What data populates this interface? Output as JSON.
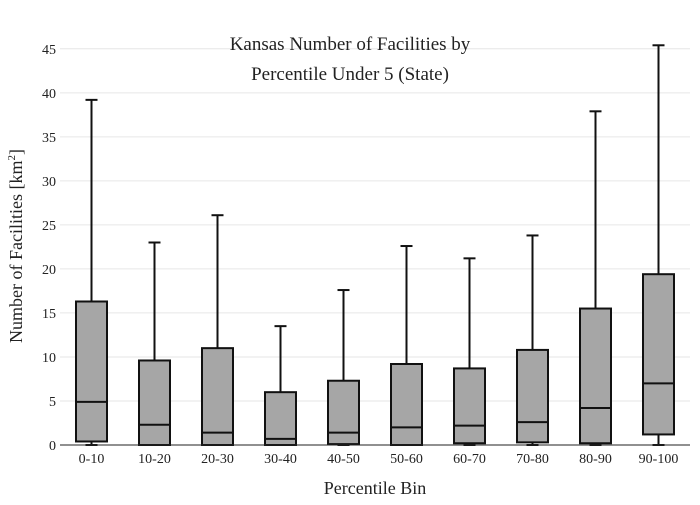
{
  "chart_data": {
    "type": "box",
    "title_lines": [
      "Kansas Number of Facilities by",
      "Percentile Under 5 (State)"
    ],
    "xlabel": "Percentile Bin",
    "ylabel_main": "Number of Facilities  [km",
    "ylabel_sup": "2",
    "ylabel_close": "]",
    "ylim": [
      0,
      46
    ],
    "yticks": [
      0,
      5,
      10,
      15,
      20,
      25,
      30,
      35,
      40,
      45
    ],
    "grid": true,
    "box_color": "#a6a6a6",
    "categories": [
      "0-10",
      "10-20",
      "20-30",
      "30-40",
      "40-50",
      "50-60",
      "60-70",
      "70-80",
      "80-90",
      "90-100"
    ],
    "boxes": [
      {
        "min": 0.0,
        "q1": 0.4,
        "median": 4.9,
        "q3": 16.3,
        "max": 39.2
      },
      {
        "min": 0.0,
        "q1": 0.0,
        "median": 2.3,
        "q3": 9.6,
        "max": 23.0
      },
      {
        "min": 0.0,
        "q1": 0.0,
        "median": 1.4,
        "q3": 11.0,
        "max": 26.1
      },
      {
        "min": 0.0,
        "q1": 0.0,
        "median": 0.7,
        "q3": 6.0,
        "max": 13.5
      },
      {
        "min": 0.0,
        "q1": 0.1,
        "median": 1.4,
        "q3": 7.3,
        "max": 17.6
      },
      {
        "min": 0.0,
        "q1": 0.0,
        "median": 2.0,
        "q3": 9.2,
        "max": 22.6
      },
      {
        "min": 0.0,
        "q1": 0.2,
        "median": 2.2,
        "q3": 8.7,
        "max": 21.2
      },
      {
        "min": 0.0,
        "q1": 0.3,
        "median": 2.6,
        "q3": 10.8,
        "max": 23.8
      },
      {
        "min": 0.0,
        "q1": 0.2,
        "median": 4.2,
        "q3": 15.5,
        "max": 37.9
      },
      {
        "min": 0.0,
        "q1": 1.2,
        "median": 7.0,
        "q3": 19.4,
        "max": 45.4
      }
    ]
  }
}
